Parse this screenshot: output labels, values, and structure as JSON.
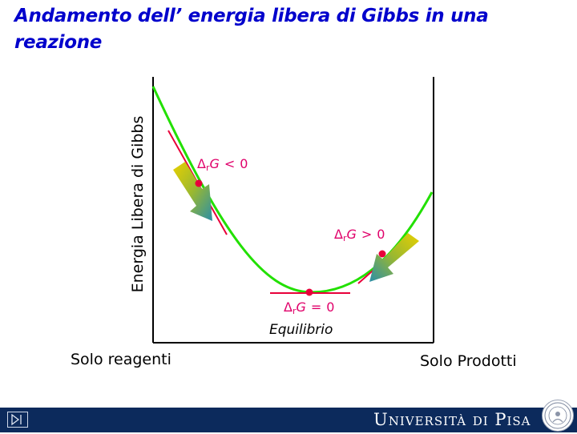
{
  "title": "Andamento dell’ energia libera di Gibbs in una reazione",
  "diagram": {
    "y_axis_label": "Energia Libera di Gibbs",
    "x_left_label": "Solo reagenti",
    "x_right_label": "Solo Prodotti",
    "point_left_label": "<",
    "point_left_value": "0",
    "point_right_label": ">",
    "point_right_value": "0",
    "point_min_label": "=",
    "point_min_value": "0",
    "equilibrium_label": "Equilibrio",
    "symbol_delta": "Δ",
    "symbol_sub": "r",
    "symbol_G": "G",
    "curve_color": "#22e000",
    "marker_color": "#e8003a",
    "label_color": "#e0006a"
  },
  "footer": {
    "brand": "Università di Pisa",
    "nav_icon": "next-slide-icon",
    "seal_icon": "university-seal-icon"
  }
}
